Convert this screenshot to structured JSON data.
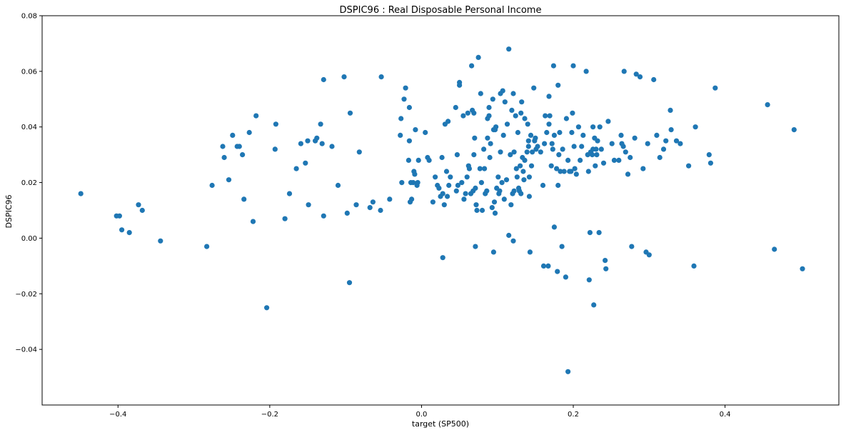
{
  "chart_data": {
    "type": "scatter",
    "title": "DSPIC96 :  Real Disposable Personal Income",
    "xlabel": "target (SP500)",
    "ylabel": "DSPIC96",
    "xlim": [
      -0.5,
      0.55
    ],
    "ylim": [
      -0.06,
      0.08
    ],
    "grid": false,
    "point_color": "#1f77b4",
    "xticks": [
      {
        "value": -0.4,
        "label": "−0.4"
      },
      {
        "value": -0.2,
        "label": "−0.2"
      },
      {
        "value": 0.0,
        "label": "0.0"
      },
      {
        "value": 0.2,
        "label": "0.2"
      },
      {
        "value": 0.4,
        "label": "0.4"
      }
    ],
    "yticks": [
      {
        "value": -0.04,
        "label": "−0.04"
      },
      {
        "value": -0.02,
        "label": "−0.02"
      },
      {
        "value": 0.0,
        "label": "0.00"
      },
      {
        "value": 0.02,
        "label": "0.02"
      },
      {
        "value": 0.04,
        "label": "0.04"
      },
      {
        "value": 0.06,
        "label": "0.06"
      },
      {
        "value": 0.08,
        "label": "0.08"
      }
    ],
    "points": [
      [
        -0.449,
        0.016
      ],
      [
        -0.402,
        0.008
      ],
      [
        -0.398,
        0.008
      ],
      [
        -0.395,
        0.003
      ],
      [
        -0.385,
        0.002
      ],
      [
        -0.373,
        0.012
      ],
      [
        -0.368,
        0.01
      ],
      [
        -0.344,
        -0.001
      ],
      [
        -0.283,
        -0.003
      ],
      [
        -0.276,
        0.019
      ],
      [
        -0.262,
        0.033
      ],
      [
        -0.26,
        0.029
      ],
      [
        -0.254,
        0.021
      ],
      [
        -0.249,
        0.037
      ],
      [
        -0.243,
        0.033
      ],
      [
        -0.24,
        0.033
      ],
      [
        -0.236,
        0.03
      ],
      [
        -0.234,
        0.014
      ],
      [
        -0.227,
        0.038
      ],
      [
        -0.222,
        0.006
      ],
      [
        -0.218,
        0.044
      ],
      [
        -0.204,
        -0.025
      ],
      [
        -0.193,
        0.032
      ],
      [
        -0.192,
        0.041
      ],
      [
        -0.18,
        0.007
      ],
      [
        -0.174,
        0.016
      ],
      [
        -0.165,
        0.025
      ],
      [
        -0.159,
        0.034
      ],
      [
        -0.153,
        0.027
      ],
      [
        -0.15,
        0.035
      ],
      [
        -0.149,
        0.012
      ],
      [
        -0.14,
        0.035
      ],
      [
        -0.138,
        0.036
      ],
      [
        -0.133,
        0.041
      ],
      [
        -0.131,
        0.034
      ],
      [
        -0.129,
        0.057
      ],
      [
        -0.129,
        0.008
      ],
      [
        -0.118,
        0.033
      ],
      [
        -0.11,
        0.019
      ],
      [
        -0.102,
        0.058
      ],
      [
        -0.098,
        0.009
      ],
      [
        -0.094,
        0.045
      ],
      [
        -0.095,
        -0.016
      ],
      [
        -0.086,
        0.012
      ],
      [
        -0.082,
        0.031
      ],
      [
        -0.068,
        0.011
      ],
      [
        -0.064,
        0.013
      ],
      [
        -0.054,
        0.01
      ],
      [
        -0.053,
        0.058
      ],
      [
        -0.042,
        0.014
      ],
      [
        -0.028,
        0.037
      ],
      [
        -0.027,
        0.043
      ],
      [
        -0.026,
        0.02
      ],
      [
        -0.023,
        0.05
      ],
      [
        -0.021,
        0.054
      ],
      [
        -0.017,
        0.028
      ],
      [
        -0.016,
        0.047
      ],
      [
        -0.016,
        0.035
      ],
      [
        -0.015,
        0.013
      ],
      [
        -0.014,
        0.02
      ],
      [
        -0.013,
        0.014
      ],
      [
        -0.011,
        0.02
      ],
      [
        -0.01,
        0.024
      ],
      [
        -0.009,
        0.023
      ],
      [
        -0.008,
        0.039
      ],
      [
        -0.006,
        0.019
      ],
      [
        -0.005,
        0.02
      ],
      [
        -0.004,
        0.028
      ],
      [
        0.005,
        0.038
      ],
      [
        0.008,
        0.029
      ],
      [
        0.01,
        0.028
      ],
      [
        0.015,
        0.013
      ],
      [
        0.018,
        0.022
      ],
      [
        0.021,
        0.019
      ],
      [
        0.023,
        0.018
      ],
      [
        0.025,
        0.015
      ],
      [
        0.027,
        0.029
      ],
      [
        0.028,
        0.016
      ],
      [
        0.028,
        -0.007
      ],
      [
        0.03,
        0.012
      ],
      [
        0.031,
        0.041
      ],
      [
        0.033,
        0.024
      ],
      [
        0.034,
        0.015
      ],
      [
        0.035,
        0.042
      ],
      [
        0.036,
        0.019
      ],
      [
        0.038,
        0.022
      ],
      [
        0.045,
        0.047
      ],
      [
        0.046,
        0.017
      ],
      [
        0.047,
        0.03
      ],
      [
        0.048,
        0.019
      ],
      [
        0.05,
        0.056
      ],
      [
        0.05,
        0.055
      ],
      [
        0.053,
        0.02
      ],
      [
        0.055,
        0.044
      ],
      [
        0.056,
        0.014
      ],
      [
        0.058,
        0.016
      ],
      [
        0.06,
        0.022
      ],
      [
        0.061,
        0.045
      ],
      [
        0.062,
        0.026
      ],
      [
        0.063,
        0.025
      ],
      [
        0.065,
        0.016
      ],
      [
        0.066,
        0.062
      ],
      [
        0.067,
        0.046
      ],
      [
        0.068,
        0.017
      ],
      [
        0.069,
        0.045
      ],
      [
        0.069,
        0.03
      ],
      [
        0.07,
        0.036
      ],
      [
        0.071,
        0.018
      ],
      [
        0.071,
        -0.003
      ],
      [
        0.072,
        0.012
      ],
      [
        0.073,
        0.01
      ],
      [
        0.075,
        0.065
      ],
      [
        0.077,
        0.025
      ],
      [
        0.078,
        0.052
      ],
      [
        0.079,
        0.02
      ],
      [
        0.08,
        0.01
      ],
      [
        0.082,
        0.032
      ],
      [
        0.083,
        0.025
      ],
      [
        0.084,
        0.016
      ],
      [
        0.086,
        0.017
      ],
      [
        0.087,
        0.043
      ],
      [
        0.087,
        0.036
      ],
      [
        0.089,
        0.044
      ],
      [
        0.089,
        0.047
      ],
      [
        0.09,
        0.029
      ],
      [
        0.091,
        0.034
      ],
      [
        0.093,
        0.011
      ],
      [
        0.094,
        0.05
      ],
      [
        0.095,
        -0.005
      ],
      [
        0.095,
        0.039
      ],
      [
        0.096,
        0.013
      ],
      [
        0.097,
        0.009
      ],
      [
        0.097,
        0.039
      ],
      [
        0.098,
        0.04
      ],
      [
        0.099,
        0.018
      ],
      [
        0.101,
        0.022
      ],
      [
        0.102,
        0.016
      ],
      [
        0.103,
        0.017
      ],
      [
        0.104,
        0.052
      ],
      [
        0.104,
        0.031
      ],
      [
        0.106,
        0.02
      ],
      [
        0.107,
        0.053
      ],
      [
        0.108,
        0.037
      ],
      [
        0.109,
        0.014
      ],
      [
        0.11,
        0.049
      ],
      [
        0.112,
        0.021
      ],
      [
        0.113,
        0.041
      ],
      [
        0.115,
        0.068
      ],
      [
        0.115,
        0.001
      ],
      [
        0.117,
        0.03
      ],
      [
        0.118,
        0.012
      ],
      [
        0.119,
        0.046
      ],
      [
        0.12,
        0.016
      ],
      [
        0.121,
        0.052
      ],
      [
        0.121,
        -0.001
      ],
      [
        0.122,
        0.031
      ],
      [
        0.122,
        0.017
      ],
      [
        0.124,
        0.044
      ],
      [
        0.125,
        0.025
      ],
      [
        0.126,
        0.022
      ],
      [
        0.127,
        0.038
      ],
      [
        0.128,
        0.018
      ],
      [
        0.129,
        0.017
      ],
      [
        0.13,
        0.026
      ],
      [
        0.131,
        0.016
      ],
      [
        0.131,
        0.045
      ],
      [
        0.132,
        0.049
      ],
      [
        0.133,
        0.029
      ],
      [
        0.134,
        0.024
      ],
      [
        0.135,
        0.021
      ],
      [
        0.136,
        0.043
      ],
      [
        0.136,
        0.028
      ],
      [
        0.139,
        0.031
      ],
      [
        0.14,
        0.041
      ],
      [
        0.141,
        0.035
      ],
      [
        0.141,
        0.033
      ],
      [
        0.142,
        0.022
      ],
      [
        0.142,
        0.015
      ],
      [
        0.143,
        -0.005
      ],
      [
        0.144,
        0.037
      ],
      [
        0.145,
        0.026
      ],
      [
        0.146,
        0.031
      ],
      [
        0.148,
        0.054
      ],
      [
        0.149,
        0.035
      ],
      [
        0.15,
        0.036
      ],
      [
        0.151,
        0.032
      ],
      [
        0.153,
        0.033
      ],
      [
        0.157,
        0.031
      ],
      [
        0.16,
        0.019
      ],
      [
        0.161,
        -0.01
      ],
      [
        0.162,
        0.034
      ],
      [
        0.163,
        0.044
      ],
      [
        0.165,
        0.038
      ],
      [
        0.167,
        -0.01
      ],
      [
        0.168,
        0.051
      ],
      [
        0.168,
        0.041
      ],
      [
        0.169,
        0.044
      ],
      [
        0.171,
        0.026
      ],
      [
        0.172,
        0.034
      ],
      [
        0.173,
        0.032
      ],
      [
        0.174,
        0.062
      ],
      [
        0.175,
        0.004
      ],
      [
        0.175,
        0.037
      ],
      [
        0.178,
        0.025
      ],
      [
        0.179,
        -0.012
      ],
      [
        0.18,
        0.019
      ],
      [
        0.18,
        0.055
      ],
      [
        0.181,
        0.03
      ],
      [
        0.182,
        0.038
      ],
      [
        0.183,
        0.024
      ],
      [
        0.185,
        -0.003
      ],
      [
        0.186,
        0.032
      ],
      [
        0.188,
        0.024
      ],
      [
        0.19,
        -0.014
      ],
      [
        0.191,
        0.043
      ],
      [
        0.193,
        -0.048
      ],
      [
        0.193,
        0.028
      ],
      [
        0.195,
        0.024
      ],
      [
        0.197,
        0.024
      ],
      [
        0.198,
        0.038
      ],
      [
        0.199,
        0.045
      ],
      [
        0.2,
        0.062
      ],
      [
        0.201,
        0.033
      ],
      [
        0.202,
        0.025
      ],
      [
        0.204,
        0.023
      ],
      [
        0.207,
        0.04
      ],
      [
        0.209,
        0.028
      ],
      [
        0.211,
        0.033
      ],
      [
        0.213,
        0.037
      ],
      [
        0.217,
        0.06
      ],
      [
        0.219,
        0.03
      ],
      [
        0.22,
        0.024
      ],
      [
        0.221,
        -0.015
      ],
      [
        0.222,
        0.002
      ],
      [
        0.223,
        0.031
      ],
      [
        0.225,
        0.03
      ],
      [
        0.226,
        0.032
      ],
      [
        0.226,
        0.04
      ],
      [
        0.227,
        -0.024
      ],
      [
        0.228,
        0.036
      ],
      [
        0.229,
        0.026
      ],
      [
        0.23,
        0.032
      ],
      [
        0.231,
        0.03
      ],
      [
        0.232,
        0.035
      ],
      [
        0.234,
        0.002
      ],
      [
        0.235,
        0.04
      ],
      [
        0.237,
        0.032
      ],
      [
        0.24,
        0.027
      ],
      [
        0.242,
        -0.008
      ],
      [
        0.243,
        -0.011
      ],
      [
        0.246,
        0.042
      ],
      [
        0.251,
        0.034
      ],
      [
        0.254,
        0.028
      ],
      [
        0.26,
        0.028
      ],
      [
        0.263,
        0.037
      ],
      [
        0.264,
        0.034
      ],
      [
        0.266,
        0.033
      ],
      [
        0.267,
        0.06
      ],
      [
        0.269,
        0.031
      ],
      [
        0.272,
        0.023
      ],
      [
        0.275,
        0.029
      ],
      [
        0.277,
        -0.003
      ],
      [
        0.281,
        0.036
      ],
      [
        0.283,
        0.059
      ],
      [
        0.288,
        0.058
      ],
      [
        0.292,
        0.025
      ],
      [
        0.296,
        -0.005
      ],
      [
        0.298,
        0.034
      ],
      [
        0.3,
        -0.006
      ],
      [
        0.306,
        0.057
      ],
      [
        0.31,
        0.037
      ],
      [
        0.314,
        0.029
      ],
      [
        0.319,
        0.032
      ],
      [
        0.322,
        0.035
      ],
      [
        0.328,
        0.046
      ],
      [
        0.329,
        0.039
      ],
      [
        0.336,
        0.035
      ],
      [
        0.341,
        0.034
      ],
      [
        0.352,
        0.026
      ],
      [
        0.359,
        -0.01
      ],
      [
        0.361,
        0.04
      ],
      [
        0.379,
        0.03
      ],
      [
        0.381,
        0.027
      ],
      [
        0.387,
        0.054
      ],
      [
        0.456,
        0.048
      ],
      [
        0.465,
        -0.004
      ],
      [
        0.491,
        0.039
      ],
      [
        0.502,
        -0.011
      ]
    ]
  }
}
